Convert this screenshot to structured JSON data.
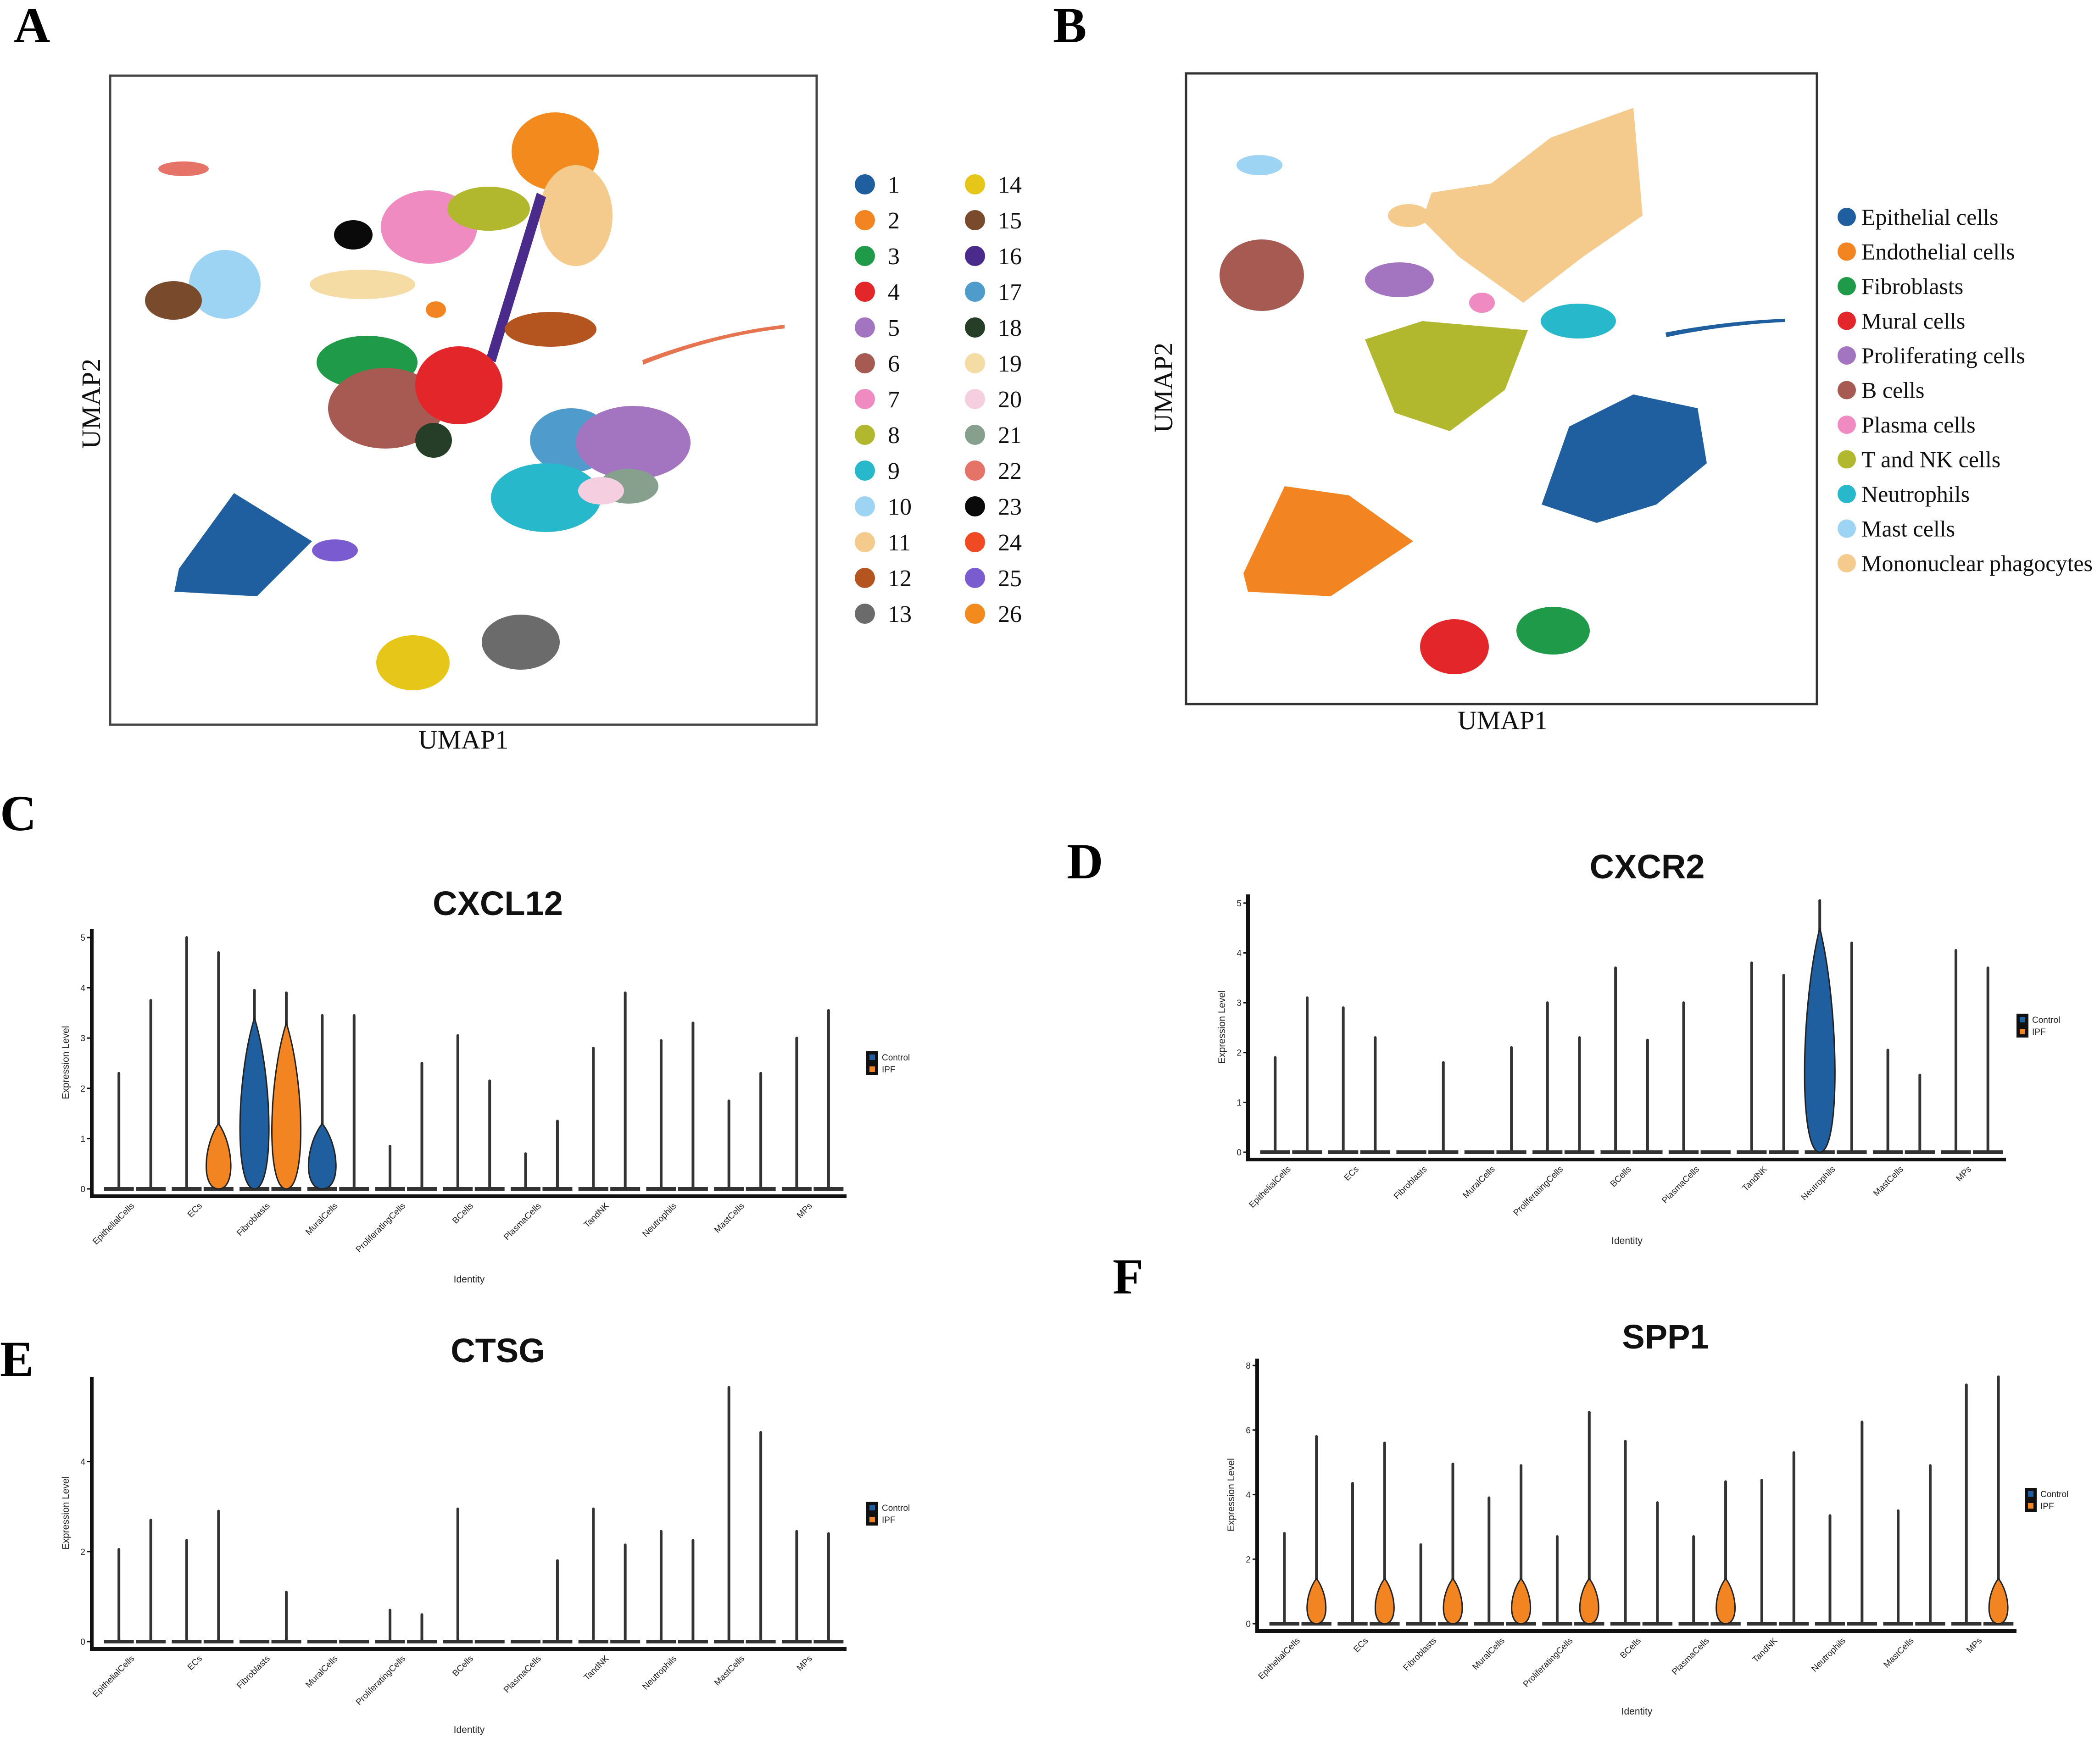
{
  "panels": {
    "A": "A",
    "B": "B",
    "C": "C",
    "D": "D",
    "E": "E",
    "F": "F"
  },
  "umap_a": {
    "xlabel": "UMAP1",
    "ylabel": "UMAP2",
    "legend": [
      {
        "label": "1",
        "color": "#1f5fa0"
      },
      {
        "label": "2",
        "color": "#f28522"
      },
      {
        "label": "3",
        "color": "#1e9a48"
      },
      {
        "label": "4",
        "color": "#e3262a"
      },
      {
        "label": "5",
        "color": "#a374bf"
      },
      {
        "label": "6",
        "color": "#a65a52"
      },
      {
        "label": "7",
        "color": "#ef8bc0"
      },
      {
        "label": "8",
        "color": "#b1b82d"
      },
      {
        "label": "9",
        "color": "#27b8cc"
      },
      {
        "label": "10",
        "color": "#9dd4f4"
      },
      {
        "label": "11",
        "color": "#f5cb8d"
      },
      {
        "label": "12",
        "color": "#b4541f"
      },
      {
        "label": "13",
        "color": "#6b6b6b"
      },
      {
        "label": "14",
        "color": "#e6c619"
      },
      {
        "label": "15",
        "color": "#7a4a2c"
      },
      {
        "label": "16",
        "color": "#4a2a8a"
      },
      {
        "label": "17",
        "color": "#4f9ccc"
      },
      {
        "label": "18",
        "color": "#263d27"
      },
      {
        "label": "19",
        "color": "#f5dca5"
      },
      {
        "label": "20",
        "color": "#f5cfe0"
      },
      {
        "label": "21",
        "color": "#86a08d"
      },
      {
        "label": "22",
        "color": "#e57368"
      },
      {
        "label": "23",
        "color": "#0a0a0a"
      },
      {
        "label": "24",
        "color": "#ef4a23"
      },
      {
        "label": "25",
        "color": "#7a5cd0"
      },
      {
        "label": "26",
        "color": "#f28a1e"
      }
    ]
  },
  "umap_b": {
    "xlabel": "UMAP1",
    "ylabel": "UMAP2",
    "legend": [
      {
        "label": "Epithelial cells",
        "color": "#1f5fa0"
      },
      {
        "label": "Endothelial cells",
        "color": "#f28522"
      },
      {
        "label": "Fibroblasts",
        "color": "#1e9a48"
      },
      {
        "label": "Mural cells",
        "color": "#e3262a"
      },
      {
        "label": "Proliferating cells",
        "color": "#a374bf"
      },
      {
        "label": "B cells",
        "color": "#a65a52"
      },
      {
        "label": "Plasma cells",
        "color": "#ef8bc0"
      },
      {
        "label": "T and NK cells",
        "color": "#b1b82d"
      },
      {
        "label": "Neutrophils",
        "color": "#27b8cc"
      },
      {
        "label": "Mast cells",
        "color": "#9dd4f4"
      },
      {
        "label": "Mononuclear phagocytes",
        "color": "#f5cb8d"
      }
    ]
  },
  "chart_data": [
    {
      "id": "C",
      "type": "violin",
      "title": "CXCL12",
      "xlabel": "Identity",
      "ylabel": "Expression Level",
      "categories": [
        "EpithelialCells",
        "ECs",
        "Fibroblasts",
        "MuralCells",
        "ProliferatingCells",
        "BCells",
        "PlasmaCells",
        "TandNK",
        "Neutrophils",
        "MastCells",
        "MPs"
      ],
      "ylim": [
        0,
        5.1
      ],
      "yticks": [
        "0",
        "1",
        "2",
        "3",
        "4",
        "5"
      ],
      "legend": [
        "Control",
        "IPF"
      ],
      "colors": {
        "Control": "#1f5fa0",
        "IPF": "#f28522"
      },
      "series": [
        {
          "name": "Control",
          "max": [
            2.3,
            5.0,
            3.95,
            3.45,
            0.85,
            3.05,
            0.7,
            2.8,
            2.95,
            1.75,
            3.0
          ]
        },
        {
          "name": "IPF",
          "max": [
            3.75,
            4.7,
            3.9,
            3.45,
            2.5,
            2.15,
            1.35,
            3.9,
            3.3,
            2.3,
            3.55
          ]
        }
      ]
    },
    {
      "id": "D",
      "type": "violin",
      "title": "CXCR2",
      "xlabel": "Identity",
      "ylabel": "Expression Level",
      "categories": [
        "EpithelialCells",
        "ECs",
        "Fibroblasts",
        "MuralCells",
        "ProliferatingCells",
        "BCells",
        "PlasmaCells",
        "TandNK",
        "Neutrophils",
        "MastCells",
        "MPs"
      ],
      "ylim": [
        0,
        5.1
      ],
      "yticks": [
        "0",
        "1",
        "2",
        "3",
        "4",
        "5"
      ],
      "legend": [
        "Control",
        "IPF"
      ],
      "colors": {
        "Control": "#1f5fa0",
        "IPF": "#f28522"
      },
      "series": [
        {
          "name": "Control",
          "max": [
            1.9,
            2.9,
            0.0,
            0.0,
            3.0,
            3.7,
            3.0,
            3.8,
            5.05,
            2.05,
            4.05
          ]
        },
        {
          "name": "IPF",
          "max": [
            3.1,
            2.3,
            1.8,
            2.1,
            2.3,
            2.25,
            0.0,
            3.55,
            4.2,
            1.55,
            3.7
          ]
        }
      ]
    },
    {
      "id": "E",
      "type": "violin",
      "title": "CTSG",
      "xlabel": "Identity",
      "ylabel": "Expression Level",
      "categories": [
        "EpithelialCells",
        "ECs",
        "Fibroblasts",
        "MuralCells",
        "ProliferatingCells",
        "BCells",
        "PlasmaCells",
        "TandNK",
        "Neutrophils",
        "MastCells",
        "MPs"
      ],
      "ylim": [
        0,
        5.8
      ],
      "yticks": [
        "0",
        "2",
        "4"
      ],
      "legend": [
        "Control",
        "IPF"
      ],
      "colors": {
        "Control": "#1f5fa0",
        "IPF": "#f28522"
      },
      "series": [
        {
          "name": "Control",
          "max": [
            2.05,
            2.25,
            0.0,
            0.0,
            0.7,
            2.95,
            0.0,
            2.95,
            2.45,
            5.65,
            2.45
          ]
        },
        {
          "name": "IPF",
          "max": [
            2.7,
            2.9,
            1.1,
            0.0,
            0.6,
            0.0,
            1.8,
            2.15,
            2.25,
            4.65,
            2.4
          ]
        }
      ]
    },
    {
      "id": "F",
      "type": "violin",
      "title": "SPP1",
      "xlabel": "Identity",
      "ylabel": "Expression Level",
      "categories": [
        "EpithelialCells",
        "ECs",
        "Fibroblasts",
        "MuralCells",
        "ProliferatingCells",
        "BCells",
        "PlasmaCells",
        "TandNK",
        "Neutrophils",
        "MastCells",
        "MPs"
      ],
      "ylim": [
        0,
        8.1
      ],
      "yticks": [
        "0",
        "2",
        "4",
        "6",
        "8"
      ],
      "legend": [
        "Control",
        "IPF"
      ],
      "colors": {
        "Control": "#1f5fa0",
        "IPF": "#f28522"
      },
      "series": [
        {
          "name": "Control",
          "max": [
            2.8,
            4.35,
            2.45,
            3.9,
            2.7,
            5.65,
            2.7,
            4.45,
            3.35,
            3.5,
            7.4
          ]
        },
        {
          "name": "IPF",
          "max": [
            5.8,
            5.6,
            4.95,
            4.9,
            6.55,
            3.75,
            4.4,
            5.3,
            6.25,
            4.9,
            7.65
          ]
        }
      ]
    }
  ]
}
